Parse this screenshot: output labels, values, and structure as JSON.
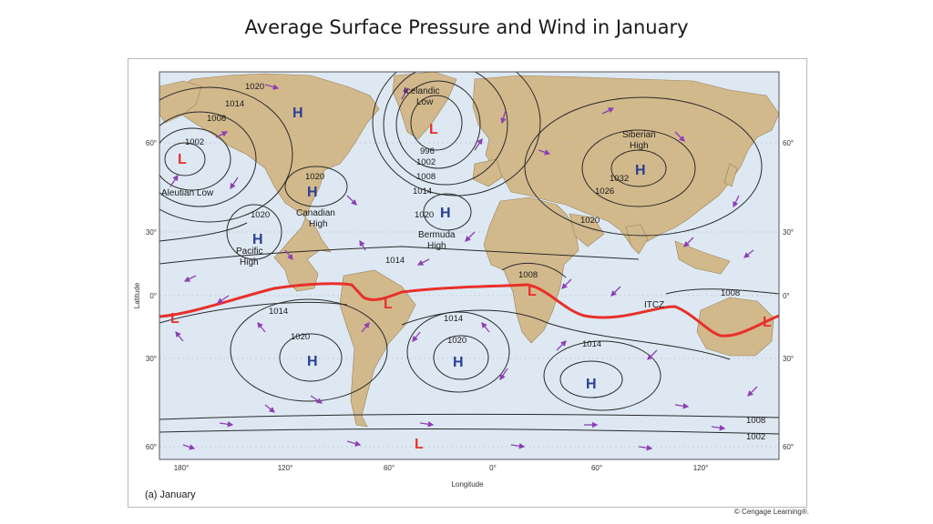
{
  "title": "Average Surface Pressure and Wind in January",
  "figure": {
    "caption": "(a) January",
    "x_axis_label": "Longitude",
    "y_axis_label": "Latitude",
    "lon_ticks": [
      "180°",
      "120°",
      "60°",
      "0°",
      "60°",
      "120°"
    ],
    "lat_ticks_left": [
      "60°",
      "30°",
      "0°",
      "30°",
      "60°"
    ],
    "lat_ticks_right": [
      "60°",
      "30°",
      "0°",
      "30°",
      "60°"
    ],
    "credit": "© Cengage Learning®."
  },
  "pressure_centers": [
    {
      "symbol": "L",
      "type": "low"
    },
    {
      "symbol": "H",
      "type": "high"
    },
    {
      "symbol": "L",
      "type": "low"
    },
    {
      "symbol": "H",
      "type": "high"
    },
    {
      "symbol": "H",
      "type": "high"
    },
    {
      "symbol": "H",
      "type": "high"
    },
    {
      "symbol": "H",
      "type": "high"
    },
    {
      "symbol": "L",
      "type": "low"
    },
    {
      "symbol": "L",
      "type": "low"
    },
    {
      "symbol": "L",
      "type": "low"
    },
    {
      "symbol": "H",
      "type": "high"
    },
    {
      "symbol": "H",
      "type": "high"
    },
    {
      "symbol": "H",
      "type": "high"
    },
    {
      "symbol": "L",
      "type": "low"
    },
    {
      "symbol": "L",
      "type": "low"
    }
  ],
  "region_labels": [
    "Icelandic",
    "Low",
    "Siberian",
    "High",
    "Aleutian Low",
    "Canadian",
    "High",
    "Bermuda",
    "High",
    "Pacific",
    "High",
    "ITCZ"
  ],
  "isobar_labels": [
    "1020",
    "1014",
    "1008",
    "1002",
    "996",
    "1002",
    "1008",
    "1014",
    "1020",
    "1020",
    "1020",
    "1014",
    "1008",
    "1014",
    "1020",
    "1014",
    "1014",
    "1020",
    "1008",
    "1032",
    "1026",
    "1020",
    "1008",
    "1002"
  ],
  "colors": {
    "ocean": "#dde8f3",
    "land": "#d2b98c",
    "isobar": "#2a2a2a",
    "itcz": "#e8302a",
    "low": "#e8302a",
    "high": "#2b3f94",
    "wind_arrow": "#8e3fb4",
    "grid": "#9aa6b4"
  }
}
